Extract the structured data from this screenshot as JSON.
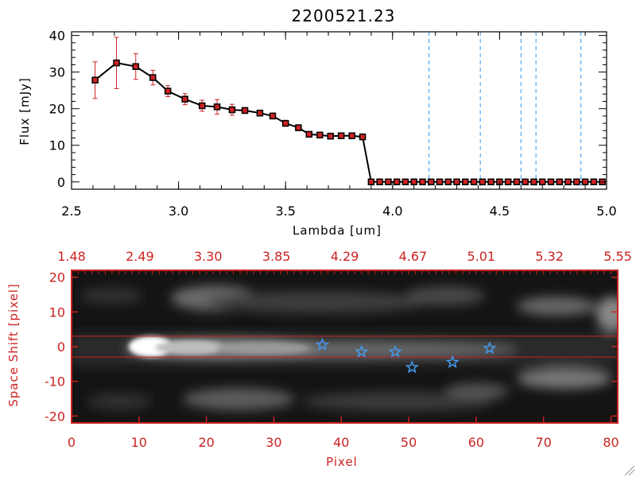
{
  "colors": {
    "axis_top": "#000000",
    "axis_bottom": "#cc2222",
    "series_line": "#000000",
    "marker": "#cc2222",
    "errorbar": "#cc2222",
    "dashed_lines": "#3399ee",
    "star_marker": "#4499ee"
  },
  "chart_data": [
    {
      "type": "line",
      "title": "2200521.23",
      "xlabel": "Lambda [um]",
      "ylabel": "Flux [mJy]",
      "xlim": [
        2.5,
        5.0
      ],
      "ylim": [
        -2,
        41
      ],
      "xticks": [
        "2.5",
        "3.0",
        "3.5",
        "4.0",
        "4.5",
        "5.0"
      ],
      "xtick_values": [
        2.5,
        3.0,
        3.5,
        4.0,
        4.5,
        5.0
      ],
      "yticks": [
        "0",
        "10",
        "20",
        "30",
        "40"
      ],
      "ytick_values": [
        0,
        10,
        20,
        30,
        40
      ],
      "grid": false,
      "series": [
        {
          "x": [
            2.61,
            2.71,
            2.8,
            2.88,
            2.95,
            3.03,
            3.11,
            3.18,
            3.25,
            3.31,
            3.38,
            3.44,
            3.5,
            3.56,
            3.61,
            3.66,
            3.71,
            3.76,
            3.81,
            3.86,
            3.9,
            3.94,
            3.98,
            4.02,
            4.06,
            4.1,
            4.14,
            4.18,
            4.22,
            4.26,
            4.3,
            4.34,
            4.38,
            4.42,
            4.46,
            4.5,
            4.54,
            4.58,
            4.62,
            4.66,
            4.7,
            4.74,
            4.78,
            4.82,
            4.86,
            4.9,
            4.94,
            4.98
          ],
          "y": [
            27.8,
            32.5,
            31.5,
            28.5,
            24.8,
            22.6,
            20.8,
            20.5,
            19.7,
            19.5,
            18.8,
            18.0,
            16.0,
            14.8,
            13.0,
            12.8,
            12.5,
            12.6,
            12.6,
            12.3,
            0,
            0,
            0,
            0,
            0,
            0,
            0,
            0,
            0,
            0,
            0,
            0,
            0,
            0,
            0,
            0,
            0,
            0,
            0,
            0,
            0,
            0,
            0,
            0,
            0,
            0,
            0,
            0
          ],
          "yerr": [
            5,
            7,
            3.5,
            2,
            1.5,
            1.5,
            1.5,
            2,
            1.5,
            0.8,
            0.8,
            0.8,
            0.8,
            0.8,
            0.6,
            0.6,
            0.5,
            0.5,
            0.5,
            0.5,
            0,
            0,
            0,
            0,
            0,
            0,
            0,
            0,
            0,
            0,
            0,
            0,
            0,
            0,
            0,
            0,
            0,
            0,
            0,
            0,
            0,
            0,
            0,
            0,
            0,
            0,
            0,
            0
          ]
        }
      ],
      "vertical_lines_x": [
        4.17,
        4.41,
        4.6,
        4.67,
        4.88
      ]
    },
    {
      "type": "heatmap",
      "xlabel": "Pixel",
      "ylabel": "Space Shift [pixel]",
      "xlim": [
        0,
        81
      ],
      "ylim": [
        -22,
        22
      ],
      "xticks": [
        "0",
        "10",
        "20",
        "30",
        "40",
        "50",
        "60",
        "70",
        "80"
      ],
      "xtick_values": [
        0,
        10,
        20,
        30,
        40,
        50,
        60,
        70,
        80
      ],
      "yticks": [
        "-20",
        "-10",
        "0",
        "10",
        "20"
      ],
      "ytick_values": [
        -20,
        -10,
        0,
        10,
        20
      ],
      "top_axis_ticks": [
        "1.48",
        "2.49",
        "3.30",
        "3.85",
        "4.29",
        "4.67",
        "5.01",
        "5.32",
        "5.55"
      ],
      "horizontal_lines_y": [
        3,
        -3
      ],
      "stars": [
        {
          "x": 37.2,
          "y": 0.5
        },
        {
          "x": 43,
          "y": -1.5
        },
        {
          "x": 48,
          "y": -1.5
        },
        {
          "x": 50.5,
          "y": -6
        },
        {
          "x": 56.5,
          "y": -4.5
        },
        {
          "x": 62,
          "y": -0.5
        }
      ]
    }
  ]
}
